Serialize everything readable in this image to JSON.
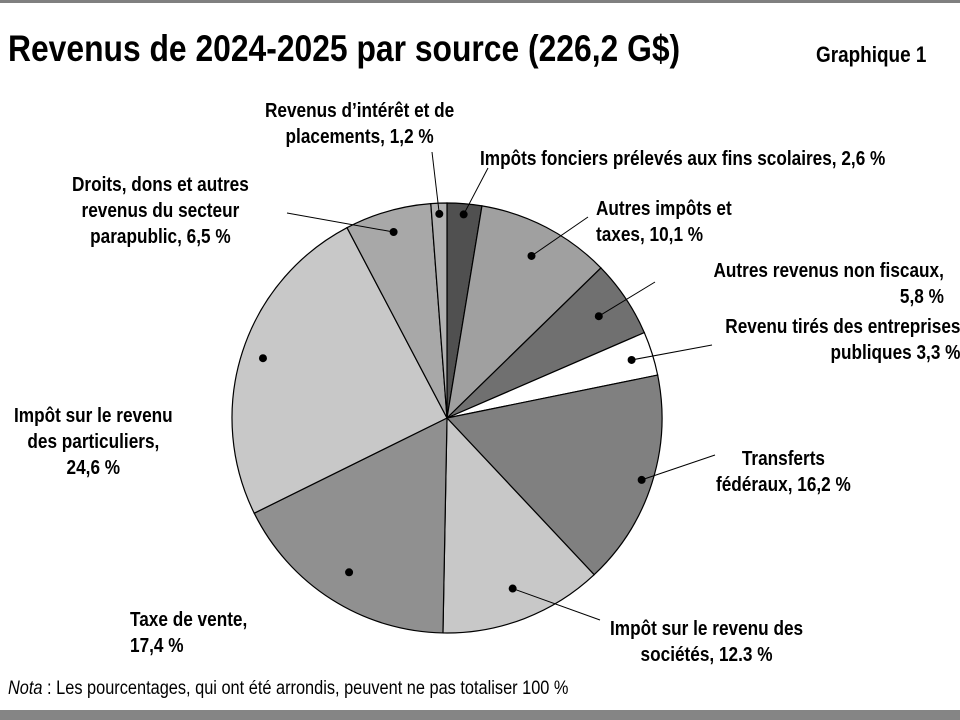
{
  "title": "Revenus de 2024-2025 par source (226,2 G$)",
  "graph_no": "Graphique 1",
  "note_label": "Nota",
  "note_text": " : Les pourcentages, qui ont été arrondis, peuvent ne pas totaliser 100 %",
  "chart_data": {
    "type": "pie",
    "title": "Revenus de 2024-2025 par source (226,2 G$)",
    "unit": "%",
    "slices": [
      {
        "label": [
          "Impôts fonciers prélevés aux fins scolaires, 2,6 %"
        ],
        "value": 2.6,
        "color": "#505050"
      },
      {
        "label": [
          "Autres impôts et",
          "taxes, 10,1 %"
        ],
        "value": 10.1,
        "color": "#a0a0a0"
      },
      {
        "label": [
          "Autres revenus non fiscaux,",
          "5,8 %"
        ],
        "value": 5.8,
        "color": "#707070"
      },
      {
        "label": [
          "Revenu tirés des entreprises",
          "publiques 3,3 %"
        ],
        "value": 3.3,
        "color": "#ffffff"
      },
      {
        "label": [
          "Transferts",
          "fédéraux, 16,2 %"
        ],
        "value": 16.2,
        "color": "#808080"
      },
      {
        "label": [
          "Impôt sur le revenu des",
          "sociétés, 12.3 %"
        ],
        "value": 12.3,
        "color": "#c8c8c8"
      },
      {
        "label": [
          "Taxe de vente,",
          "17,4 %"
        ],
        "value": 17.4,
        "color": "#909090"
      },
      {
        "label": [
          "Impôt sur le revenu",
          "des particuliers,",
          "24,6 %"
        ],
        "value": 24.6,
        "color": "#c8c8c8"
      },
      {
        "label": [
          "Droits, dons et autres",
          "revenus du secteur",
          "parapublic, 6,5 %"
        ],
        "value": 6.5,
        "color": "#a8a8a8"
      },
      {
        "label": [
          "Revenus d’intérêt et de",
          "placements, 1,2 %"
        ],
        "value": 1.2,
        "color": "#b0b0b0"
      }
    ]
  }
}
